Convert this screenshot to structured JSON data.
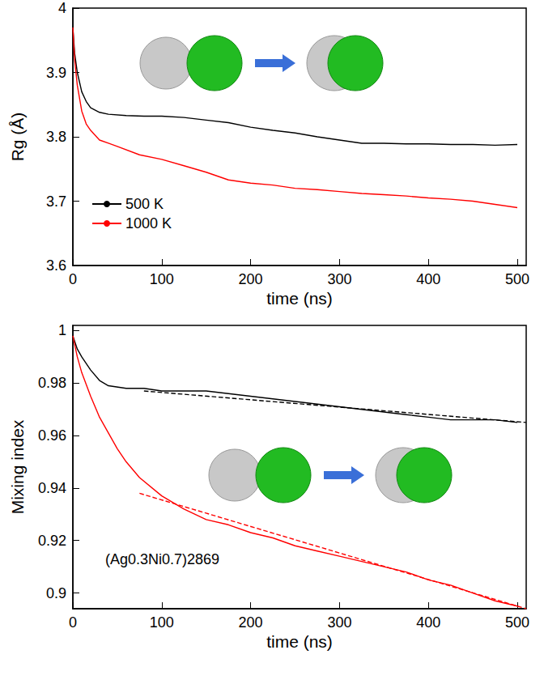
{
  "chart_data": [
    {
      "type": "line",
      "x_label": "time (ns)",
      "y_label": "Rg (Å)",
      "xlim": [
        0,
        510
      ],
      "xticks": [
        0,
        100,
        200,
        300,
        400,
        500
      ],
      "ylim": [
        3.6,
        4
      ],
      "yticks": [
        3.6,
        3.7,
        3.8,
        3.9,
        4
      ],
      "legend": "lower left",
      "series": [
        {
          "name": "500 K",
          "color": "#000000",
          "line_style": "solid",
          "marker": "none",
          "x": [
            0,
            2,
            5,
            10,
            15,
            20,
            30,
            40,
            60,
            80,
            100,
            125,
            150,
            175,
            200,
            225,
            250,
            275,
            300,
            325,
            350,
            375,
            400,
            425,
            450,
            475,
            500
          ],
          "values": [
            3.97,
            3.93,
            3.9,
            3.87,
            3.855,
            3.845,
            3.838,
            3.835,
            3.833,
            3.832,
            3.832,
            3.83,
            3.826,
            3.822,
            3.815,
            3.81,
            3.806,
            3.8,
            3.795,
            3.79,
            3.79,
            3.789,
            3.789,
            3.788,
            3.788,
            3.787,
            3.788
          ]
        },
        {
          "name": "1000 K",
          "color": "#ff0000",
          "line_style": "solid",
          "marker": "none",
          "x": [
            0,
            2,
            5,
            10,
            15,
            20,
            30,
            40,
            50,
            75,
            100,
            125,
            150,
            175,
            200,
            225,
            250,
            275,
            300,
            325,
            350,
            375,
            400,
            425,
            450,
            475,
            500
          ],
          "values": [
            3.97,
            3.92,
            3.88,
            3.84,
            3.82,
            3.81,
            3.795,
            3.79,
            3.785,
            3.772,
            3.765,
            3.755,
            3.745,
            3.733,
            3.728,
            3.725,
            3.72,
            3.718,
            3.715,
            3.712,
            3.71,
            3.708,
            3.705,
            3.703,
            3.7,
            3.695,
            3.69
          ]
        }
      ]
    },
    {
      "type": "line",
      "x_label": "time (ns)",
      "y_label": "Mixing index",
      "annotation": "(Ag0.3Ni0.7)2869",
      "xlim": [
        0,
        510
      ],
      "xticks": [
        0,
        100,
        200,
        300,
        400,
        500
      ],
      "ylim": [
        0.894,
        1.002
      ],
      "yticks": [
        0.9,
        0.92,
        0.94,
        0.96,
        0.98,
        1
      ],
      "series": [
        {
          "color": "#000000",
          "line_style": "solid",
          "marker": "none",
          "x": [
            0,
            5,
            10,
            20,
            30,
            40,
            60,
            80,
            100,
            125,
            150,
            175,
            200,
            225,
            250,
            275,
            300,
            325,
            350,
            375,
            400,
            425,
            450,
            475,
            500
          ],
          "values": [
            0.998,
            0.993,
            0.99,
            0.985,
            0.981,
            0.979,
            0.978,
            0.978,
            0.977,
            0.977,
            0.977,
            0.976,
            0.975,
            0.974,
            0.973,
            0.972,
            0.971,
            0.97,
            0.969,
            0.968,
            0.967,
            0.966,
            0.966,
            0.966,
            0.965
          ]
        },
        {
          "color": "#ff0000",
          "line_style": "solid",
          "marker": "none",
          "x": [
            0,
            5,
            10,
            20,
            30,
            40,
            50,
            60,
            75,
            100,
            125,
            150,
            175,
            200,
            225,
            250,
            275,
            300,
            325,
            350,
            375,
            400,
            425,
            450,
            475,
            500
          ],
          "values": [
            0.998,
            0.99,
            0.984,
            0.975,
            0.967,
            0.961,
            0.955,
            0.95,
            0.944,
            0.937,
            0.932,
            0.928,
            0.926,
            0.923,
            0.921,
            0.918,
            0.916,
            0.914,
            0.912,
            0.91,
            0.908,
            0.905,
            0.903,
            0.9,
            0.897,
            0.895
          ]
        },
        {
          "color": "#000000",
          "line_style": "dashed",
          "marker": "none",
          "x": [
            80,
            510
          ],
          "values": [
            0.977,
            0.965
          ]
        },
        {
          "color": "#ff0000",
          "line_style": "dashed",
          "marker": "none",
          "x": [
            75,
            510
          ],
          "values": [
            0.938,
            0.894
          ]
        }
      ]
    }
  ]
}
